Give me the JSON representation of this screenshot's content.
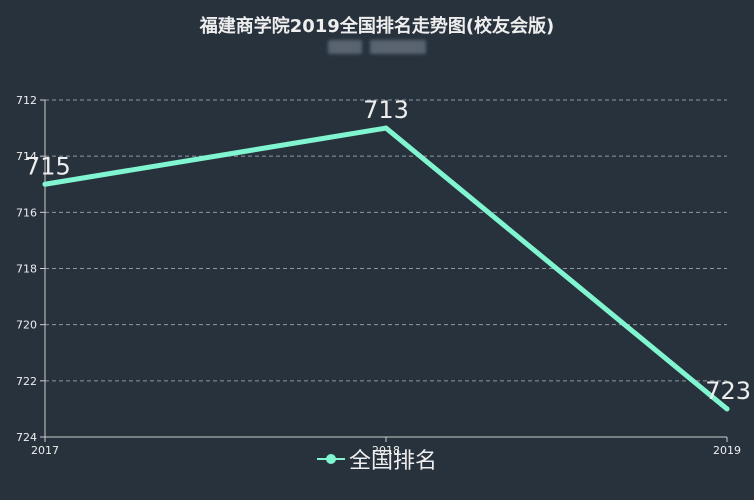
{
  "chart_data": {
    "type": "line",
    "title": "福建商学院2019全国排名走势图(校友会版)",
    "categories": [
      "2017",
      "2018",
      "2019"
    ],
    "series": [
      {
        "name": "全国排名",
        "values": [
          715,
          713,
          723
        ],
        "color": "#80f5d0"
      }
    ],
    "data_labels": [
      "715",
      "713",
      "723"
    ],
    "ylim": [
      712,
      724
    ],
    "y_inverted": true,
    "y_ticks": [
      "712",
      "714",
      "716",
      "718",
      "720",
      "722",
      "724"
    ],
    "grid": true,
    "legend_position": "bottom-center"
  },
  "theme": {
    "background": "#27323d",
    "text": "#eeeeee",
    "grid": "#aab2bb",
    "axis": "#cccccc"
  }
}
